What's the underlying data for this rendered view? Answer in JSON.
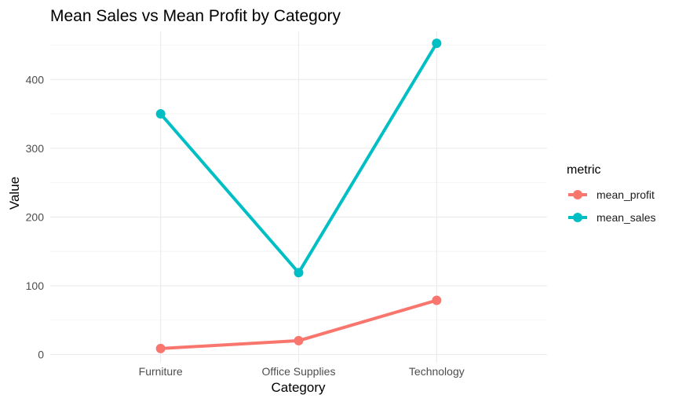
{
  "chart_data": {
    "type": "line",
    "title": "Mean Sales vs Mean Profit by Category",
    "xlabel": "Category",
    "ylabel": "Value",
    "categories": [
      "Furniture",
      "Office Supplies",
      "Technology"
    ],
    "ylim": [
      -12,
      470
    ],
    "yticks": [
      0,
      100,
      200,
      300,
      400
    ],
    "yticks_minor": [
      50,
      150,
      250,
      350,
      450
    ],
    "grid": true,
    "legend": {
      "title": "metric",
      "position": "right"
    },
    "series": [
      {
        "name": "mean_profit",
        "color": "#F8766D",
        "values": [
          8.7,
          20.1,
          78.8
        ]
      },
      {
        "name": "mean_sales",
        "color": "#00BFC4",
        "values": [
          350,
          119,
          452.7
        ]
      }
    ]
  }
}
